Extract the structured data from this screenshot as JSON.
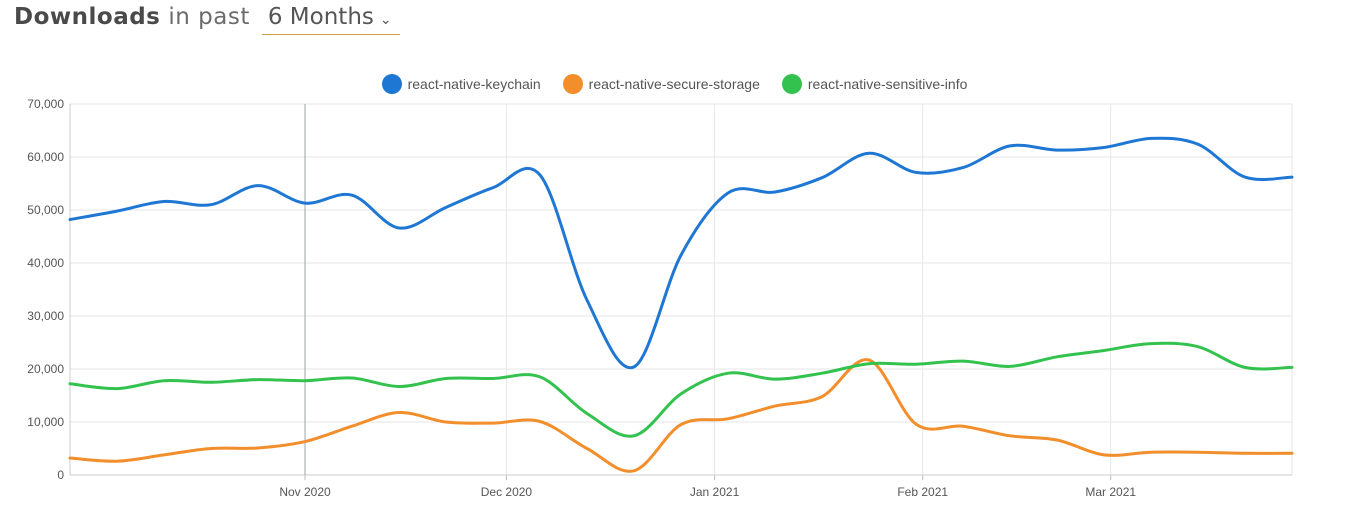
{
  "header": {
    "title": "Downloads",
    "subtitle": "in past",
    "period": "6 Months",
    "chevron_icon": "chevron-down-icon"
  },
  "chart_data": {
    "type": "line",
    "ylim": [
      0,
      70000
    ],
    "yticks": [
      0,
      10000,
      20000,
      30000,
      40000,
      50000,
      60000,
      70000
    ],
    "ytick_labels": [
      "0",
      "10,000",
      "20,000",
      "30,000",
      "40,000",
      "50,000",
      "60,000",
      "70,000"
    ],
    "xlim": [
      "2020-09-27",
      "2021-03-28"
    ],
    "xticks": [
      "2020-11-01",
      "2020-12-01",
      "2021-01-01",
      "2021-02-01",
      "2021-03-01"
    ],
    "xtick_labels": [
      "Nov 2020",
      "Dec 2020",
      "Jan 2021",
      "Feb 2021",
      "Mar 2021"
    ],
    "x": [
      "2020-09-27",
      "2020-10-04",
      "2020-10-11",
      "2020-10-18",
      "2020-10-25",
      "2020-11-01",
      "2020-11-08",
      "2020-11-15",
      "2020-11-22",
      "2020-11-29",
      "2020-12-06",
      "2020-12-13",
      "2020-12-20",
      "2020-12-27",
      "2021-01-03",
      "2021-01-10",
      "2021-01-17",
      "2021-01-24",
      "2021-01-31",
      "2021-02-07",
      "2021-02-14",
      "2021-02-21",
      "2021-02-28",
      "2021-03-07",
      "2021-03-14",
      "2021-03-21",
      "2021-03-28"
    ],
    "grid": true,
    "legend_position": "top-center",
    "series": [
      {
        "name": "react-native-keychain",
        "color": "#1f77d4",
        "values": [
          48200,
          49800,
          51600,
          51000,
          54600,
          51300,
          52800,
          46600,
          50500,
          54200,
          56600,
          33000,
          20400,
          41500,
          53200,
          53400,
          56100,
          60700,
          57100,
          58000,
          62100,
          61300,
          61800,
          63500,
          62400,
          56200,
          56200
        ]
      },
      {
        "name": "react-native-secure-storage",
        "color": "#f28e2b",
        "values": [
          3200,
          2600,
          3800,
          5000,
          5100,
          6300,
          9200,
          11800,
          10000,
          9800,
          10100,
          5000,
          800,
          9500,
          10600,
          13000,
          14800,
          21700,
          9600,
          9200,
          7400,
          6600,
          3800,
          4300,
          4300,
          4100,
          4100
        ]
      },
      {
        "name": "react-native-sensitive-info",
        "color": "#33c24d",
        "values": [
          17200,
          16300,
          17800,
          17500,
          18000,
          17800,
          18300,
          16700,
          18200,
          18200,
          18500,
          11600,
          7400,
          15300,
          19200,
          18100,
          19200,
          21000,
          20900,
          21500,
          20500,
          22300,
          23500,
          24800,
          24200,
          20300,
          20300
        ]
      }
    ]
  }
}
